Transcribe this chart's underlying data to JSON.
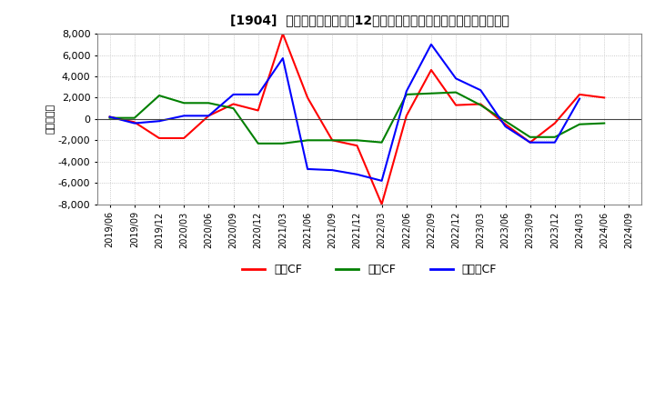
{
  "title": "[1904]  キャッシュフローの12か月移動合計の対前年同期増減額の推移",
  "ylabel": "（百万円）",
  "ylim": [
    -8000,
    8000
  ],
  "yticks": [
    -8000,
    -6000,
    -4000,
    -2000,
    0,
    2000,
    4000,
    6000,
    8000
  ],
  "background_color": "#ffffff",
  "grid_color": "#aaaaaa",
  "x_labels": [
    "2019/06",
    "2019/09",
    "2019/12",
    "2020/03",
    "2020/06",
    "2020/09",
    "2020/12",
    "2021/03",
    "2021/06",
    "2021/09",
    "2021/12",
    "2022/03",
    "2022/06",
    "2022/09",
    "2022/12",
    "2023/03",
    "2023/06",
    "2023/09",
    "2023/12",
    "2024/03",
    "2024/06",
    "2024/09"
  ],
  "series_order": [
    "営業CF",
    "投資CF",
    "フリーCF"
  ],
  "series": {
    "営業CF": {
      "color": "#ff0000",
      "values": [
        200,
        -300,
        -1800,
        -1800,
        300,
        1400,
        800,
        8000,
        2000,
        -2000,
        -2500,
        -8000,
        300,
        4600,
        1300,
        1400,
        -500,
        -2200,
        -400,
        2300,
        2000,
        null
      ]
    },
    "投資CF": {
      "color": "#008000",
      "values": [
        100,
        100,
        2200,
        1500,
        1500,
        1000,
        -2300,
        -2300,
        -2000,
        -2000,
        -2000,
        -2200,
        2300,
        2400,
        2500,
        1300,
        -200,
        -1700,
        -1700,
        -500,
        -400,
        null
      ]
    },
    "フリーCF": {
      "color": "#0000ff",
      "values": [
        200,
        -400,
        -200,
        300,
        300,
        2300,
        2300,
        5700,
        -4700,
        -4800,
        -5200,
        -5800,
        2600,
        7000,
        3800,
        2700,
        -700,
        -2200,
        -2200,
        1900,
        null,
        null
      ]
    }
  },
  "legend_labels": [
    "営業CF",
    "投資CF",
    "フリーCF"
  ],
  "legend_colors": [
    "#ff0000",
    "#008000",
    "#0000ff"
  ]
}
